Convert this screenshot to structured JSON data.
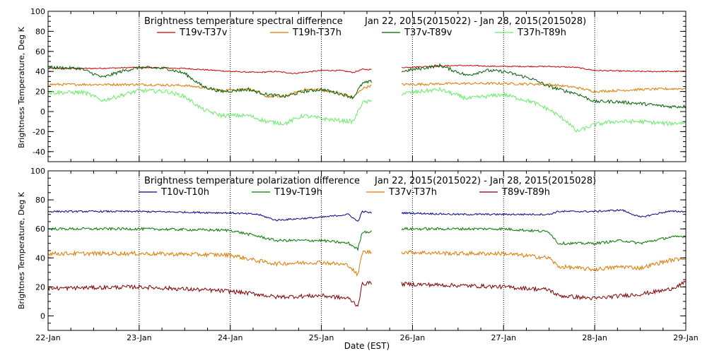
{
  "chart_data": [
    {
      "type": "line",
      "title": "Brightness temperature spectral difference",
      "date_range": "Jan 22, 2015(2015022) - Jan 28, 2015(2015028)",
      "ylabel": "Brightness Temperature, Deg K",
      "ylim": [
        -50,
        100
      ],
      "yticks": [
        "-40",
        "-20",
        "0",
        "20",
        "40",
        "60",
        "80",
        "100"
      ],
      "yticks_values": [
        -40,
        -20,
        0,
        20,
        40,
        60,
        80,
        100
      ],
      "xlim": [
        0,
        7
      ],
      "gap": [
        3.55,
        3.88
      ],
      "legend": [
        {
          "name": "T19v-T37v",
          "color": "#cc0000"
        },
        {
          "name": "T19h-T37h",
          "color": "#e07800"
        },
        {
          "name": "T37v-T89v",
          "color": "#005f00"
        },
        {
          "name": "T37h-T89h",
          "color": "#66ee66"
        }
      ],
      "series": [
        {
          "name": "T19v-T37v",
          "color": "#cc0000",
          "noise": 0.6,
          "x": [
            0,
            0.5,
            1,
            1.5,
            2,
            2.3,
            2.5,
            2.7,
            3.0,
            3.2,
            3.35,
            3.45,
            3.55,
            3.88,
            4.5,
            5.0,
            5.5,
            5.8,
            6.0,
            6.5,
            7.0
          ],
          "y": [
            43,
            43,
            44,
            43,
            40,
            39,
            40,
            38,
            41,
            41,
            39,
            42,
            42,
            44,
            46,
            45,
            45,
            44,
            41,
            40,
            40
          ]
        },
        {
          "name": "T19h-T37h",
          "color": "#e07800",
          "noise": 1.2,
          "x": [
            0,
            0.5,
            1,
            1.5,
            1.7,
            1.9,
            2.2,
            2.4,
            2.6,
            2.8,
            3.0,
            3.2,
            3.35,
            3.45,
            3.55,
            3.88,
            4.5,
            5.0,
            5.5,
            5.8,
            6.0,
            6.5,
            7.0
          ],
          "y": [
            27,
            27,
            27,
            26,
            24,
            21,
            23,
            15,
            15,
            22,
            22,
            18,
            14,
            23,
            26,
            27,
            28,
            28,
            27,
            24,
            20,
            22,
            23
          ]
        },
        {
          "name": "T37v-T89v",
          "color": "#005f00",
          "noise": 1.6,
          "x": [
            0,
            0.35,
            0.6,
            0.8,
            1.0,
            1.3,
            1.5,
            1.7,
            1.9,
            2.2,
            2.4,
            2.6,
            2.8,
            3.0,
            3.2,
            3.35,
            3.45,
            3.55,
            3.88,
            4.3,
            4.6,
            4.8,
            5.0,
            5.3,
            5.5,
            5.7,
            5.8,
            6.0,
            6.2,
            6.5,
            6.8,
            7.0
          ],
          "y": [
            44,
            43,
            34,
            40,
            44,
            43,
            38,
            25,
            20,
            22,
            17,
            15,
            20,
            22,
            18,
            14,
            28,
            30,
            40,
            46,
            36,
            41,
            40,
            33,
            25,
            20,
            18,
            10,
            10,
            8,
            5,
            5
          ]
        },
        {
          "name": "T37h-T89h",
          "color": "#66ee66",
          "noise": 2.0,
          "x": [
            0,
            0.4,
            0.6,
            0.8,
            1.0,
            1.3,
            1.5,
            1.7,
            1.9,
            2.2,
            2.4,
            2.6,
            2.8,
            3.0,
            3.2,
            3.35,
            3.45,
            3.55,
            3.88,
            4.3,
            4.6,
            5.0,
            5.3,
            5.5,
            5.7,
            5.8,
            6.0,
            6.2,
            6.5,
            6.8,
            7.0
          ],
          "y": [
            19,
            19,
            11,
            16,
            21,
            20,
            15,
            2,
            -4,
            -4,
            -10,
            -12,
            -4,
            -7,
            -9,
            -10,
            9,
            10,
            18,
            22,
            13,
            17,
            10,
            2,
            -10,
            -20,
            -13,
            -10,
            -10,
            -12,
            -11
          ]
        }
      ]
    },
    {
      "type": "line",
      "title": "Brightness temperature polarization difference",
      "date_range": "Jan 22, 2015(2015022) - Jan 28, 2015(2015028)",
      "ylabel": "Brightnes Temperature, Deg K",
      "xlabel": "Date (EST)",
      "ylim": [
        -10,
        100
      ],
      "yticks": [
        "0",
        "20",
        "40",
        "60",
        "80",
        "100"
      ],
      "yticks_values": [
        0,
        20,
        40,
        60,
        80,
        100
      ],
      "xlim": [
        0,
        7
      ],
      "xticks": [
        "22-Jan",
        "23-Jan",
        "24-Jan",
        "25-Jan",
        "26-Jan",
        "27-Jan",
        "28-Jan",
        "29-Jan"
      ],
      "gap": [
        3.55,
        3.88
      ],
      "legend": [
        {
          "name": "T10v-T10h",
          "color": "#000088"
        },
        {
          "name": "T19v-T19h",
          "color": "#007700"
        },
        {
          "name": "T37v-T37h",
          "color": "#e07800"
        },
        {
          "name": "T89v-T89h",
          "color": "#800000"
        }
      ],
      "series": [
        {
          "name": "T10v-T10h",
          "color": "#000088",
          "noise": 0.6,
          "x": [
            0,
            1,
            2,
            2.3,
            2.5,
            3.0,
            3.3,
            3.4,
            3.45,
            3.55,
            3.88,
            4.5,
            5.0,
            5.5,
            5.6,
            6.0,
            6.3,
            6.5,
            6.8,
            7.0
          ],
          "y": [
            72,
            72,
            71,
            70,
            66,
            68,
            70,
            65,
            72,
            71,
            71,
            70,
            70,
            70,
            72,
            72,
            73,
            68,
            72,
            72
          ]
        },
        {
          "name": "T19v-T19h",
          "color": "#007700",
          "noise": 0.9,
          "x": [
            0,
            1,
            2,
            2.3,
            2.5,
            3.0,
            3.3,
            3.4,
            3.45,
            3.55,
            3.88,
            4.5,
            5.0,
            5.5,
            5.6,
            6.0,
            6.3,
            6.5,
            6.8,
            7.0
          ],
          "y": [
            60,
            60,
            59,
            55,
            52,
            52,
            50,
            46,
            58,
            58,
            60,
            60,
            60,
            58,
            50,
            50,
            52,
            50,
            54,
            55
          ]
        },
        {
          "name": "T37v-T37h",
          "color": "#e07800",
          "noise": 1.4,
          "x": [
            0,
            1,
            2,
            2.3,
            2.5,
            3.0,
            3.3,
            3.4,
            3.45,
            3.55,
            3.88,
            4.5,
            5.0,
            5.5,
            5.6,
            6.0,
            6.3,
            6.5,
            6.8,
            7.0
          ],
          "y": [
            43,
            43,
            42,
            38,
            36,
            37,
            35,
            28,
            44,
            44,
            44,
            43,
            43,
            40,
            34,
            32,
            34,
            33,
            38,
            40
          ]
        },
        {
          "name": "T89v-T89h",
          "color": "#800000",
          "noise": 1.4,
          "x": [
            0,
            1,
            2,
            2.3,
            2.5,
            3.0,
            3.3,
            3.4,
            3.45,
            3.55,
            3.88,
            4.5,
            5.0,
            5.5,
            5.6,
            6.0,
            6.3,
            6.5,
            6.8,
            7.0
          ],
          "y": [
            19,
            20,
            17,
            15,
            13,
            14,
            12,
            7,
            22,
            23,
            22,
            21,
            20,
            18,
            14,
            12,
            14,
            15,
            18,
            23
          ]
        }
      ]
    }
  ]
}
